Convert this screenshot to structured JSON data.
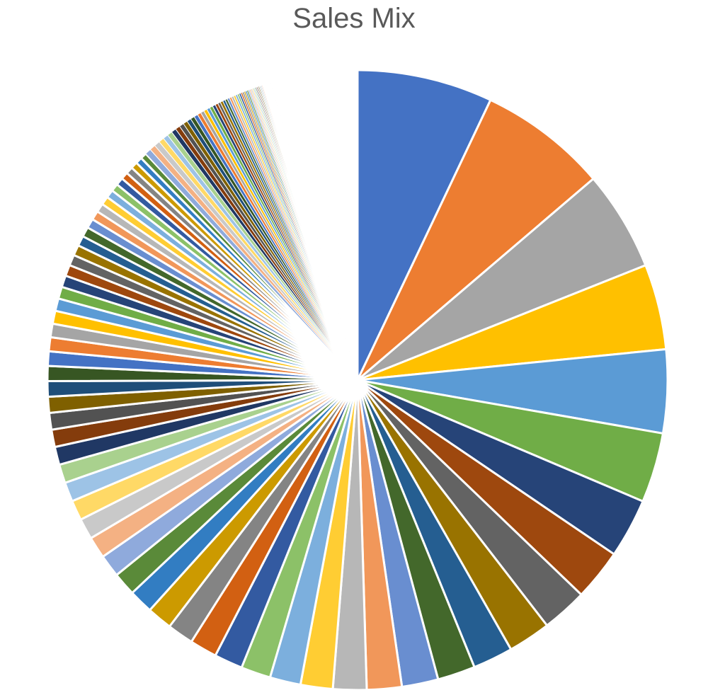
{
  "chart_data": {
    "type": "pie",
    "title": "Sales Mix",
    "legend": "none",
    "start_angle_deg": 0,
    "values": [
      8.04,
      7.63,
      5.94,
      5.07,
      4.95,
      4.15,
      3.53,
      3.05,
      2.7,
      2.53,
      2.38,
      2.24,
      2.16,
      2.07,
      1.99,
      1.91,
      1.83,
      1.76,
      1.69,
      1.62,
      1.56,
      1.5,
      1.44,
      1.39,
      1.34,
      1.29,
      1.24,
      1.19,
      1.15,
      1.11,
      1.07,
      1.03,
      0.99,
      0.95,
      0.92,
      0.89,
      0.86,
      0.83,
      0.8,
      0.77,
      0.74,
      0.71,
      0.69,
      0.66,
      0.64,
      0.62,
      0.6,
      0.58,
      0.56,
      0.54,
      0.52,
      0.5,
      0.48,
      0.46,
      0.45,
      0.43,
      0.42,
      0.4,
      0.39,
      0.37,
      0.36,
      0.35,
      0.34,
      0.32,
      0.31,
      0.3,
      0.29,
      0.28,
      0.27,
      0.26,
      0.25,
      0.24,
      0.23,
      0.22,
      0.21,
      0.2,
      0.19,
      0.19,
      0.18,
      0.17,
      0.16,
      0.16,
      0.15,
      0.14,
      0.14,
      0.13,
      0.13,
      0.12,
      0.12,
      0.11,
      0.11,
      0.1,
      0.1,
      0.09,
      0.09,
      0.09,
      0.08,
      0.08,
      0.08,
      0.07,
      0.07,
      0.07,
      0.06,
      0.06,
      0.06,
      0.06,
      0.05,
      0.05,
      0.05,
      0.05,
      0.04,
      0.04,
      0.04,
      0.04,
      0.04,
      0.03,
      0.03,
      0.03,
      0.03,
      0.03,
      0.03,
      0.02,
      0.02,
      0.02,
      0.02,
      0.02,
      0.02,
      0.02,
      0.02,
      0.01,
      0.01,
      0.01,
      0.01,
      0.01,
      0.01,
      0.01,
      0.01,
      0.01,
      0.01,
      0.01
    ],
    "blank_remainder": 5.0,
    "colors": [
      "#4472C4",
      "#ED7D31",
      "#A5A5A5",
      "#FFC000",
      "#5B9BD5",
      "#70AD47",
      "#264478",
      "#9E480E",
      "#636363",
      "#997300",
      "#255E91",
      "#43682B",
      "#698ED0",
      "#F1975A",
      "#B7B7B7",
      "#FFCD33",
      "#7CAFDD",
      "#8CC168",
      "#335AA1",
      "#D26012",
      "#848484",
      "#CC9A00",
      "#327DC2",
      "#5A8A39",
      "#8FAADC",
      "#F4B183",
      "#C9C9C9",
      "#FFD966",
      "#9DC3E6",
      "#A9D18E",
      "#203864",
      "#843C0C",
      "#525252",
      "#7F6000",
      "#1F4E79",
      "#375623"
    ]
  }
}
